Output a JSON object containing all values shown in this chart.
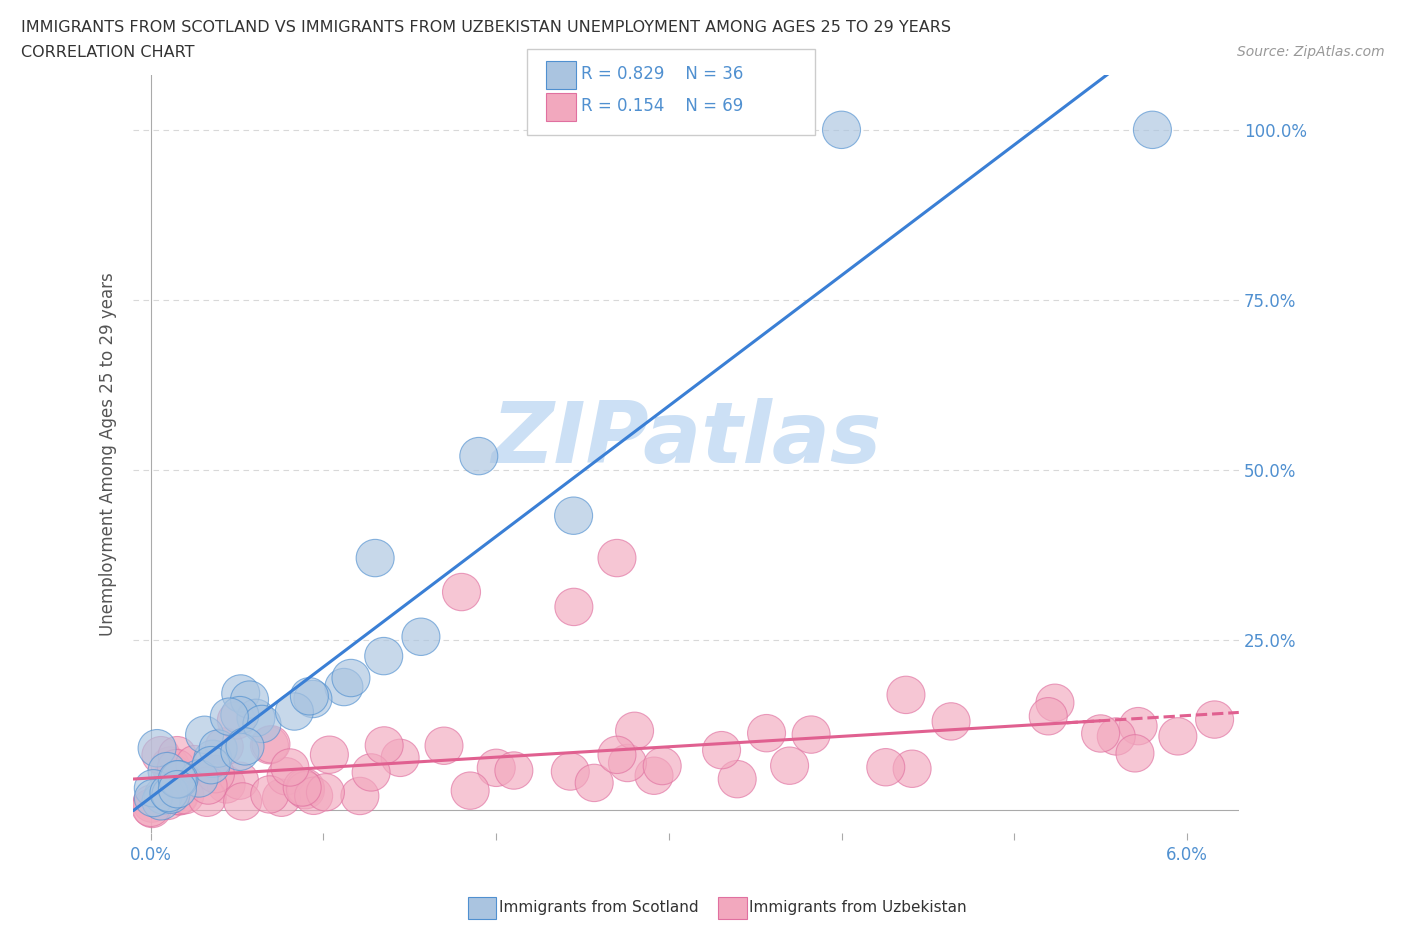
{
  "title_line1": "IMMIGRANTS FROM SCOTLAND VS IMMIGRANTS FROM UZBEKISTAN UNEMPLOYMENT AMONG AGES 25 TO 29 YEARS",
  "title_line2": "CORRELATION CHART",
  "source_text": "Source: ZipAtlas.com",
  "ylabel": "Unemployment Among Ages 25 to 29 years",
  "scotland_color": "#aac4e0",
  "uzbekistan_color": "#f2a8be",
  "scotland_edge_color": "#5090d0",
  "uzbekistan_edge_color": "#e070a0",
  "scotland_line_color": "#3a7fd5",
  "uzbekistan_line_color": "#e06090",
  "watermark_text": "ZIPatlas",
  "watermark_color": "#cce0f5",
  "background_color": "#ffffff",
  "grid_color": "#d8d8d8",
  "title_color": "#333333",
  "tick_color": "#5090d0",
  "ylabel_color": "#555555",
  "xlim": [
    -0.001,
    0.063
  ],
  "ylim": [
    -0.035,
    1.08
  ],
  "x_ticks": [
    0.0,
    0.01,
    0.02,
    0.03,
    0.04,
    0.05,
    0.06
  ],
  "y_ticks": [
    0.0,
    0.25,
    0.5,
    0.75,
    1.0
  ],
  "scotland_N": 36,
  "uzbekistan_N": 69,
  "scotland_R": 0.829,
  "uzbekistan_R": 0.154
}
